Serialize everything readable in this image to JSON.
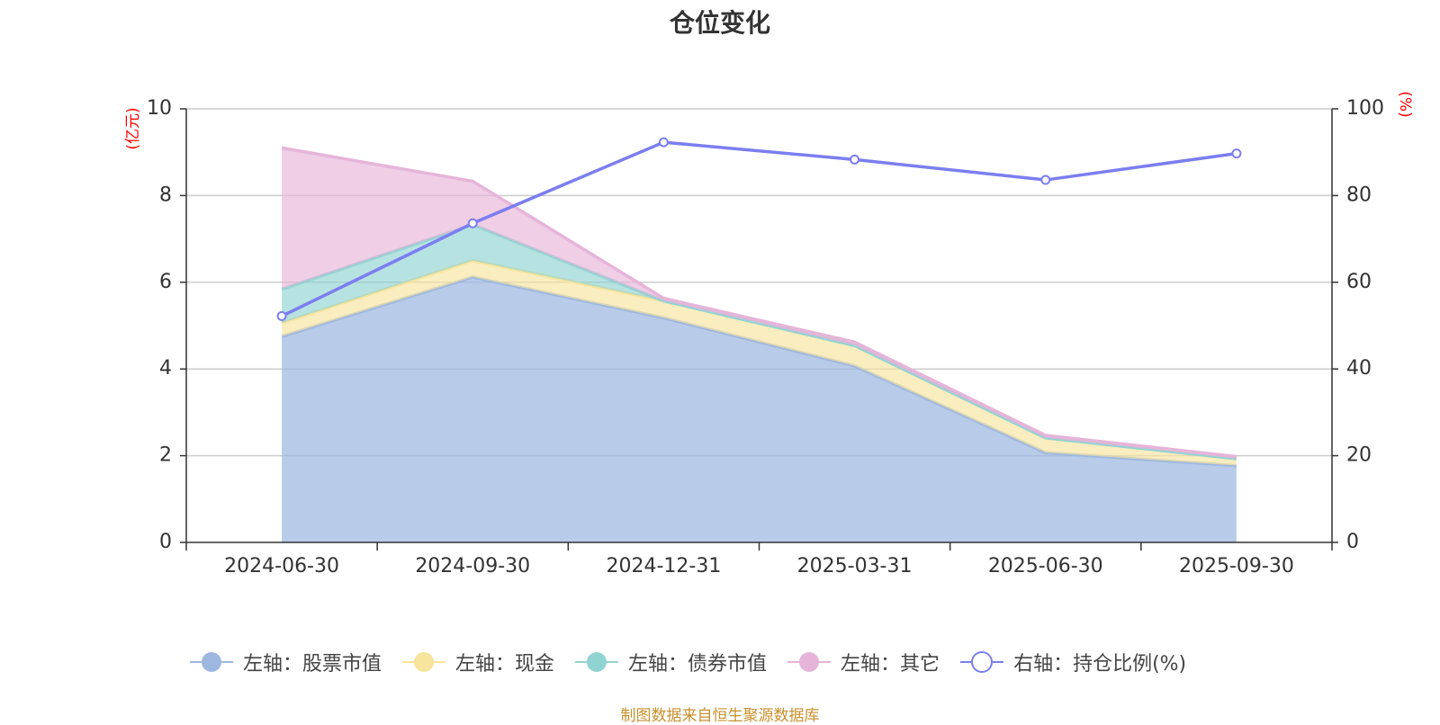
{
  "title": "仓位变化",
  "source_note": "制图数据来自恒生聚源数据库",
  "colors": {
    "stock": "#9db7e0",
    "cash": "#f7e49c",
    "bond": "#90d3d3",
    "other": "#e6b4d9",
    "ratio": "#7b7ef0",
    "grid": "#cccccc",
    "axis": "#333333",
    "unit": "#ff0000"
  },
  "legend": [
    {
      "label": "左轴：股票市值",
      "color": "#9db7e0",
      "marker": "filled-circle"
    },
    {
      "label": "左轴：现金",
      "color": "#f7e49c",
      "marker": "filled-circle"
    },
    {
      "label": "左轴：债券市值",
      "color": "#90d3d3",
      "marker": "filled-circle"
    },
    {
      "label": "左轴：其它",
      "color": "#e6b4d9",
      "marker": "filled-circle"
    },
    {
      "label": "右轴：持仓比例(%)",
      "color": "#7b7ef0",
      "marker": "hollow-circle"
    }
  ],
  "chart_data": {
    "type": "area",
    "title": "仓位变化",
    "categories": [
      "2024-06-30",
      "2024-09-30",
      "2024-12-31",
      "2025-03-31",
      "2025-06-30",
      "2025-09-30"
    ],
    "left_axis": {
      "unit": "(亿元)",
      "ylim": [
        0,
        10
      ],
      "ticks": [
        0,
        2,
        4,
        6,
        8,
        10
      ]
    },
    "right_axis": {
      "unit": "(%)",
      "ylim": [
        0,
        100
      ],
      "ticks": [
        0,
        20,
        40,
        60,
        80,
        100
      ]
    },
    "stacked_series": [
      {
        "name": "左轴：股票市值",
        "axis": "left",
        "values": [
          4.75,
          6.12,
          5.18,
          4.07,
          2.07,
          1.77
        ]
      },
      {
        "name": "左轴：现金",
        "axis": "left",
        "values": [
          0.31,
          0.38,
          0.39,
          0.47,
          0.34,
          0.16
        ]
      },
      {
        "name": "左轴：债券市值",
        "axis": "left",
        "values": [
          0.78,
          0.83,
          0.0,
          0.0,
          0.0,
          0.0
        ]
      },
      {
        "name": "左轴：其它",
        "axis": "left",
        "values": [
          3.26,
          1.0,
          0.06,
          0.08,
          0.06,
          0.05
        ]
      }
    ],
    "line_series": {
      "name": "右轴：持仓比例(%)",
      "axis": "right",
      "values": [
        52.2,
        73.6,
        92.3,
        88.3,
        83.6,
        89.7
      ]
    },
    "grid": true,
    "legend_position": "bottom"
  }
}
